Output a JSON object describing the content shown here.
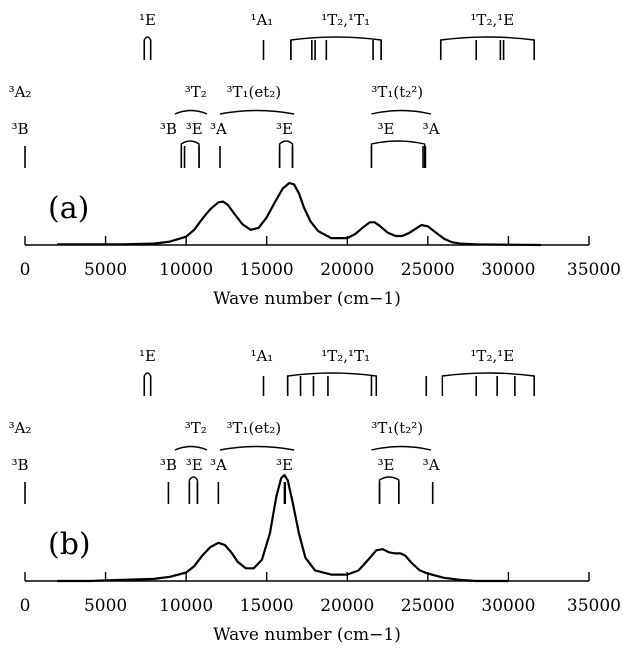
{
  "chart_data": [
    {
      "type": "line",
      "panel_label": "(a)",
      "xlabel": "Wave number (cm−1)",
      "xlim": [
        0,
        35000
      ],
      "xticks": [
        0,
        5000,
        10000,
        15000,
        20000,
        25000,
        30000,
        35000
      ],
      "tick_labels": [
        "0",
        "5000",
        "10000",
        "15000",
        "20000",
        "25000",
        "30000",
        "35000"
      ],
      "grid": false,
      "series": [
        {
          "x": [
            2000,
            4000,
            6000,
            8000,
            9000,
            10000,
            10500,
            11000,
            11500,
            12000,
            12300,
            12600,
            13000,
            13500,
            14000,
            14500,
            15000,
            15500,
            16000,
            16400,
            16700,
            17000,
            17300,
            17700,
            18200,
            19000,
            20000,
            20500,
            21000,
            21400,
            21700,
            22000,
            22500,
            23000,
            23400,
            23800,
            24200,
            24600,
            25000,
            25500,
            26000,
            26500,
            27000,
            28000,
            30000,
            32000
          ],
          "y": [
            0.01,
            0.01,
            0.01,
            0.02,
            0.05,
            0.12,
            0.22,
            0.38,
            0.52,
            0.62,
            0.63,
            0.58,
            0.45,
            0.3,
            0.22,
            0.25,
            0.4,
            0.62,
            0.82,
            0.9,
            0.88,
            0.75,
            0.55,
            0.35,
            0.2,
            0.1,
            0.1,
            0.16,
            0.26,
            0.33,
            0.33,
            0.28,
            0.18,
            0.13,
            0.13,
            0.17,
            0.23,
            0.29,
            0.27,
            0.18,
            0.09,
            0.04,
            0.02,
            0.01,
            0.005,
            0.0
          ]
        }
      ],
      "levels": {
        "spin_allowed": {
          "labels": [
            {
              "text": "³A₂",
              "x": -1800
            },
            {
              "text": "³T₂",
              "x": 10600
            },
            {
              "text": "³T₁(et₂)",
              "x": 14200
            },
            {
              "text": "³T₁(t₂²)",
              "x": 23100
            }
          ],
          "sublabels": [
            {
              "text": "³B",
              "x": -1800
            },
            {
              "text": "³B",
              "x": 8900
            },
            {
              "text": "³E",
              "x": 10500
            },
            {
              "text": "³A",
              "x": 12000
            },
            {
              "text": "³E",
              "x": 16100
            },
            {
              "text": "³E",
              "x": 22400
            },
            {
              "text": "³A",
              "x": 25200
            }
          ],
          "lines": [
            0,
            9700,
            9900,
            10800,
            12100,
            15800,
            16600,
            21500,
            24700,
            24850
          ],
          "brackets": [
            [
              9700,
              10800
            ],
            [
              15800,
              16600
            ],
            [
              21500,
              24800
            ]
          ]
        },
        "spin_forbidden": {
          "labels": [
            {
              "text": "¹E",
              "x": 7600
            },
            {
              "text": "¹A₁",
              "x": 14700
            },
            {
              "text": "¹T₂,¹T₁",
              "x": 19900
            },
            {
              "text": "¹T₂,¹E",
              "x": 29000
            }
          ],
          "lines": [
            7400,
            7800,
            14800,
            16500,
            17800,
            18000,
            18700,
            21600,
            22100,
            25800,
            28000,
            29500,
            29700,
            31600
          ],
          "brackets": [
            [
              7400,
              7800
            ],
            [
              16500,
              22100
            ],
            [
              25800,
              31600
            ]
          ]
        }
      }
    },
    {
      "type": "line",
      "panel_label": "(b)",
      "xlabel": "Wave number (cm−1)",
      "xlim": [
        0,
        35000
      ],
      "xticks": [
        0,
        5000,
        10000,
        15000,
        20000,
        25000,
        30000,
        35000
      ],
      "tick_labels": [
        "0",
        "5000",
        "10000",
        "15000",
        "20000",
        "25000",
        "30000",
        "35000"
      ],
      "grid": false,
      "series": [
        {
          "x": [
            2000,
            4000,
            6000,
            8000,
            9000,
            10000,
            10500,
            11000,
            11500,
            12000,
            12400,
            12800,
            13200,
            13700,
            14200,
            14700,
            15200,
            15600,
            15900,
            16100,
            16300,
            16600,
            17000,
            17400,
            18000,
            19000,
            20000,
            20700,
            21300,
            21800,
            22200,
            22600,
            23000,
            23300,
            23600,
            24000,
            24500,
            25000,
            25500,
            26000,
            27000,
            28000,
            30000
          ],
          "y": [
            0.0,
            0.0,
            0.01,
            0.02,
            0.04,
            0.08,
            0.14,
            0.24,
            0.32,
            0.36,
            0.34,
            0.27,
            0.18,
            0.12,
            0.12,
            0.2,
            0.45,
            0.8,
            0.97,
            1.0,
            0.95,
            0.75,
            0.45,
            0.22,
            0.1,
            0.06,
            0.06,
            0.1,
            0.2,
            0.29,
            0.3,
            0.27,
            0.26,
            0.26,
            0.24,
            0.17,
            0.1,
            0.07,
            0.05,
            0.03,
            0.01,
            0.0,
            0.0
          ]
        }
      ],
      "levels": {
        "spin_allowed": {
          "labels": [
            {
              "text": "³A₂",
              "x": -1800
            },
            {
              "text": "³T₂",
              "x": 10600
            },
            {
              "text": "³T₁(et₂)",
              "x": 14200
            },
            {
              "text": "³T₁(t₂²)",
              "x": 23100
            }
          ],
          "sublabels": [
            {
              "text": "³B",
              "x": -1800
            },
            {
              "text": "³B",
              "x": 8900
            },
            {
              "text": "³E",
              "x": 10500
            },
            {
              "text": "³A",
              "x": 12000
            },
            {
              "text": "³E",
              "x": 16100
            },
            {
              "text": "³E",
              "x": 22400
            },
            {
              "text": "³A",
              "x": 25200
            }
          ],
          "lines": [
            0,
            8900,
            10200,
            10700,
            12000,
            16100,
            16150,
            22000,
            23200,
            25300
          ],
          "brackets": [
            [
              10200,
              10700
            ],
            [
              22000,
              23200
            ]
          ]
        },
        "spin_forbidden": {
          "labels": [
            {
              "text": "¹E",
              "x": 7600
            },
            {
              "text": "¹A₁",
              "x": 14700
            },
            {
              "text": "¹T₂,¹T₁",
              "x": 19900
            },
            {
              "text": "¹T₂,¹E",
              "x": 29000
            }
          ],
          "lines": [
            7400,
            7800,
            14800,
            16300,
            17100,
            17900,
            18800,
            21500,
            21800,
            24900,
            28000,
            29300,
            30400,
            31600
          ],
          "brackets": [
            [
              7400,
              7800
            ],
            [
              16300,
              21800
            ],
            [
              25900,
              31600
            ]
          ]
        }
      }
    }
  ]
}
